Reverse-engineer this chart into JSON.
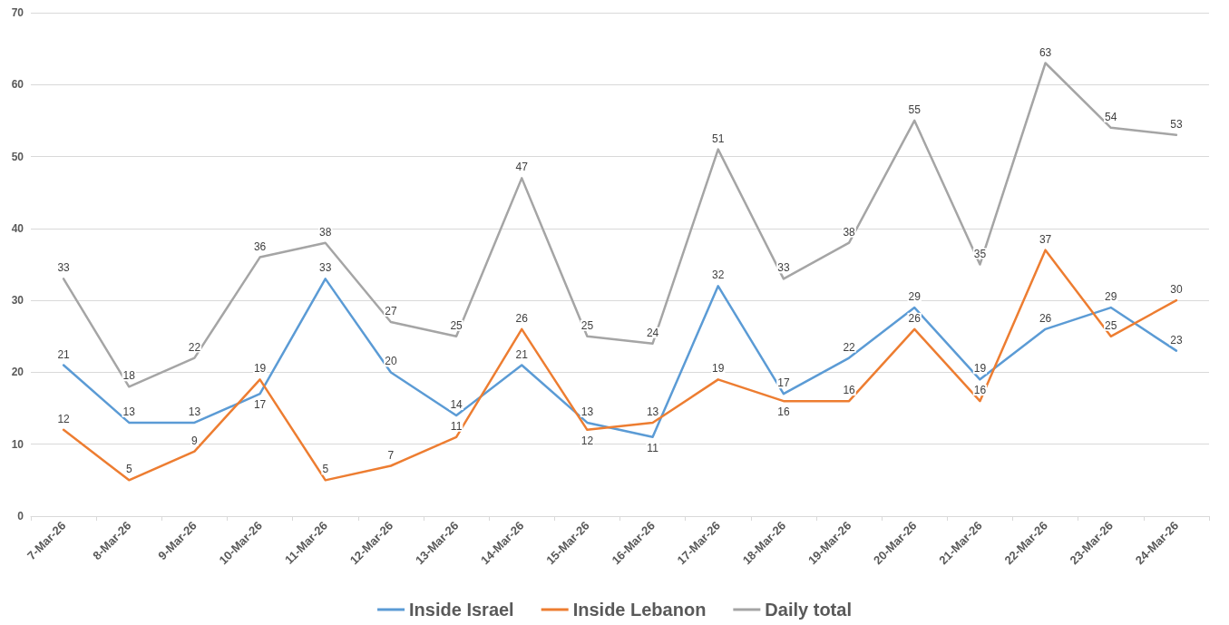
{
  "chart_data": {
    "type": "line",
    "categories": [
      "7-Mar-26",
      "8-Mar-26",
      "9-Mar-26",
      "10-Mar-26",
      "11-Mar-26",
      "12-Mar-26",
      "13-Mar-26",
      "14-Mar-26",
      "15-Mar-26",
      "16-Mar-26",
      "17-Mar-26",
      "18-Mar-26",
      "19-Mar-26",
      "20-Mar-26",
      "21-Mar-26",
      "22-Mar-26",
      "23-Mar-26",
      "24-Mar-26"
    ],
    "series": [
      {
        "name": "Inside Israel",
        "color": "#5b9bd5",
        "values": [
          21,
          13,
          13,
          17,
          33,
          20,
          14,
          21,
          13,
          11,
          32,
          17,
          22,
          29,
          19,
          26,
          29,
          23
        ]
      },
      {
        "name": "Inside Lebanon",
        "color": "#ed7d31",
        "values": [
          12,
          5,
          9,
          19,
          5,
          7,
          11,
          26,
          12,
          13,
          19,
          16,
          16,
          26,
          16,
          37,
          25,
          30
        ]
      },
      {
        "name": "Daily total",
        "color": "#a5a5a5",
        "values": [
          33,
          18,
          22,
          36,
          38,
          27,
          25,
          47,
          25,
          24,
          51,
          33,
          38,
          55,
          35,
          63,
          54,
          53
        ]
      }
    ],
    "ylim": [
      0,
      70
    ],
    "yticks": [
      0,
      10,
      20,
      30,
      40,
      50,
      60,
      70
    ],
    "grid": "y",
    "legend": "bottom",
    "marker": "none",
    "line_style": "solid",
    "data_labels": true
  }
}
